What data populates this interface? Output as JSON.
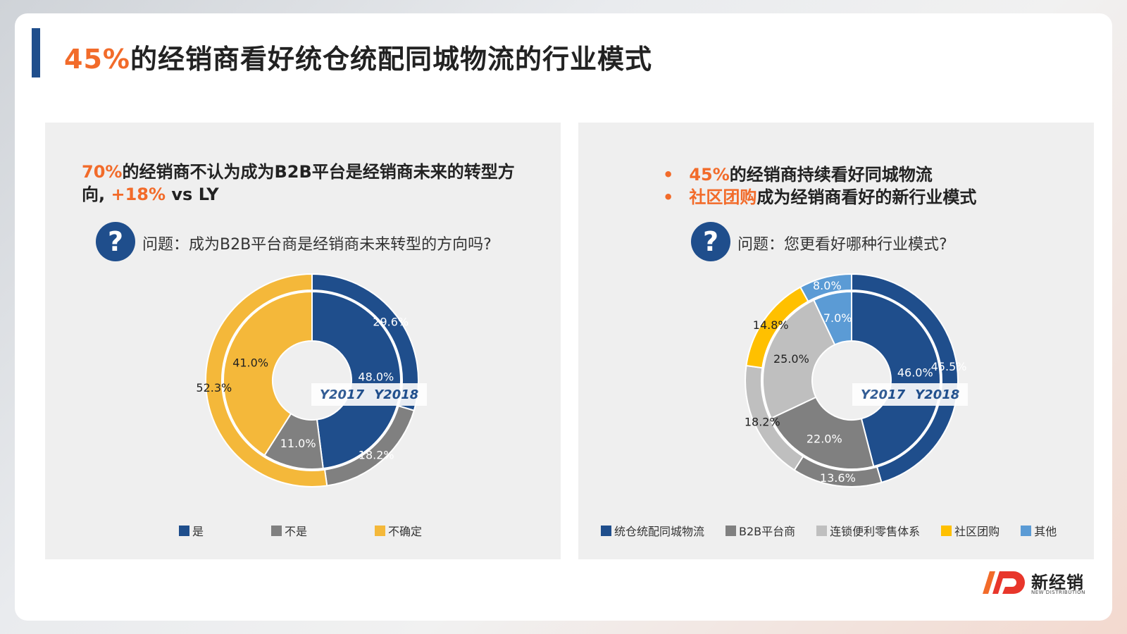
{
  "title": {
    "highlight": "45%",
    "rest": "的经销商看好统仓统配同城物流的行业模式"
  },
  "colors": {
    "navy": "#1f4e8c",
    "orange": "#f26b2a",
    "gray": "#808080",
    "lightgray": "#bfbfbf",
    "yellow": "#f4b83a",
    "gold": "#ffc000",
    "lightblue": "#5b9bd5"
  },
  "left_panel": {
    "headline_pct": "70%",
    "headline_mid": "的经销商不认为成为B2B平台是经销商未来的转型方向, ",
    "headline_delta": "+18%",
    "headline_tail": " vs LY",
    "question_icon": "?",
    "question": "问题：成为B2B平台商是经销商未来转型的方向吗?",
    "year_label_a": "Y2017",
    "year_label_b": "Y2018"
  },
  "right_panel": {
    "bullet": "•",
    "line1_pct": "45%",
    "line1_rest": "的经销商持续看好同城物流",
    "line2_hl": "社区团购",
    "line2_rest": "成为经销商看好的新行业模式",
    "question_icon": "?",
    "question": "问题：您更看好哪种行业模式?",
    "year_label_a": "Y2017",
    "year_label_b": "Y2018"
  },
  "chart_data": [
    {
      "type": "donut",
      "categories": [
        "是",
        "不是",
        "不确定"
      ],
      "colors": [
        "#1f4e8c",
        "#808080",
        "#f4b83a"
      ],
      "series": [
        {
          "name": "Y2017",
          "values": [
            48.0,
            11.0,
            41.0
          ],
          "labels": [
            "48.0%",
            "11.0%",
            "41.0%"
          ]
        },
        {
          "name": "Y2018",
          "values": [
            29.6,
            18.2,
            52.3
          ],
          "labels": [
            "29.6%",
            "18.2%",
            "52.3%"
          ]
        }
      ]
    },
    {
      "type": "donut",
      "categories": [
        "统仓统配同城物流",
        "B2B平台商",
        "连锁便利零售体系",
        "社区团购",
        "其他"
      ],
      "colors": [
        "#1f4e8c",
        "#808080",
        "#bfbfbf",
        "#ffc000",
        "#5b9bd5"
      ],
      "series": [
        {
          "name": "Y2017",
          "values": [
            46.0,
            22.0,
            25.0,
            0,
            7.0
          ],
          "labels": [
            "46.0%",
            "22.0%",
            "25.0%",
            "",
            "7.0%"
          ]
        },
        {
          "name": "Y2018",
          "values": [
            45.5,
            13.6,
            18.2,
            14.8,
            8.0
          ],
          "labels": [
            "45.5%",
            "13.6%",
            "18.2%",
            "14.8%",
            "8.0%"
          ]
        }
      ]
    }
  ],
  "logo": {
    "text": "新经销",
    "sub": "NEW DISTRIBUTION"
  }
}
